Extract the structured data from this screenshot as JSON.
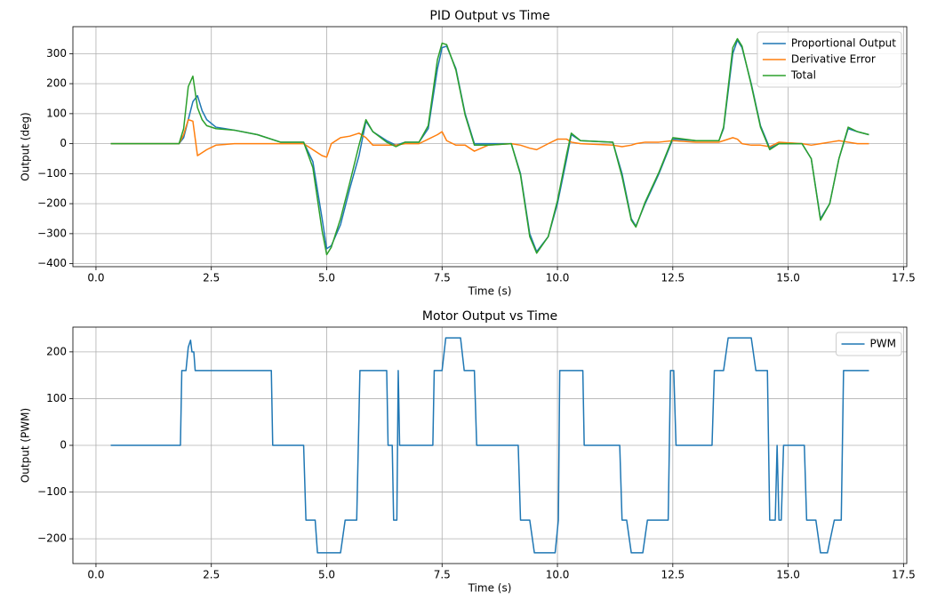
{
  "chart_data": [
    {
      "type": "line",
      "title": "PID Output vs Time",
      "xlabel": "Time (s)",
      "ylabel": "Output (deg)",
      "x": [
        0.32,
        1.8,
        1.9,
        2.0,
        2.1,
        2.2,
        2.3,
        2.4,
        2.6,
        3.0,
        3.5,
        4.0,
        4.5,
        4.7,
        4.9,
        5.0,
        5.1,
        5.3,
        5.5,
        5.7,
        5.85,
        6.0,
        6.3,
        6.5,
        6.7,
        7.0,
        7.2,
        7.4,
        7.5,
        7.6,
        7.8,
        8.0,
        8.2,
        8.5,
        9.0,
        9.2,
        9.4,
        9.55,
        9.8,
        10.0,
        10.2,
        10.3,
        10.5,
        11.2,
        11.4,
        11.6,
        11.7,
        11.9,
        12.2,
        12.5,
        13.0,
        13.5,
        13.6,
        13.8,
        13.9,
        14.0,
        14.2,
        14.4,
        14.6,
        14.8,
        15.3,
        15.5,
        15.7,
        15.9,
        16.1,
        16.3,
        16.5,
        16.75
      ],
      "series": [
        {
          "name": "Proportional Output",
          "color": "#1f77b4",
          "values": [
            0,
            0,
            20,
            80,
            140,
            160,
            110,
            80,
            55,
            45,
            30,
            5,
            5,
            -60,
            -250,
            -350,
            -340,
            -270,
            -150,
            -40,
            75,
            40,
            10,
            -5,
            5,
            5,
            50,
            250,
            320,
            325,
            250,
            100,
            0,
            0,
            0,
            -100,
            -300,
            -360,
            -310,
            -200,
            -50,
            30,
            10,
            5,
            -100,
            -250,
            -275,
            -200,
            -100,
            15,
            10,
            10,
            50,
            300,
            345,
            320,
            200,
            60,
            -15,
            0,
            0,
            -50,
            -250,
            -200,
            -50,
            50,
            40,
            30
          ]
        },
        {
          "name": "Derivative Error",
          "color": "#ff7f0e",
          "values": [
            0,
            0,
            30,
            80,
            75,
            -40,
            -30,
            -20,
            -5,
            0,
            0,
            0,
            0,
            -20,
            -40,
            -45,
            0,
            20,
            25,
            35,
            20,
            -5,
            -5,
            -5,
            0,
            0,
            15,
            30,
            40,
            10,
            -5,
            -5,
            -25,
            -5,
            0,
            -5,
            -15,
            -20,
            0,
            15,
            15,
            5,
            0,
            -5,
            -10,
            -5,
            0,
            5,
            5,
            10,
            5,
            5,
            10,
            20,
            15,
            0,
            -5,
            -5,
            -10,
            5,
            0,
            -5,
            0,
            5,
            10,
            5,
            0,
            0
          ]
        },
        {
          "name": "Total",
          "color": "#2ca02c",
          "values": [
            0,
            0,
            50,
            190,
            225,
            120,
            80,
            60,
            50,
            45,
            30,
            5,
            5,
            -80,
            -290,
            -370,
            -345,
            -250,
            -130,
            -5,
            80,
            40,
            5,
            -10,
            5,
            5,
            60,
            280,
            335,
            330,
            245,
            95,
            -5,
            -5,
            0,
            -105,
            -310,
            -365,
            -310,
            -190,
            -35,
            35,
            10,
            5,
            -110,
            -255,
            -278,
            -195,
            -95,
            20,
            10,
            10,
            55,
            320,
            350,
            325,
            195,
            55,
            -20,
            0,
            0,
            -50,
            -255,
            -200,
            -50,
            55,
            40,
            30
          ]
        }
      ],
      "xlim": [
        -0.5,
        17.57
      ],
      "ylim": [
        -410,
        390
      ],
      "xticks": [
        {
          "value": 0,
          "label": "0.0"
        },
        2.5,
        {
          "value": 5,
          "label": "5.0"
        },
        7.5,
        {
          "value": 10,
          "label": "10.0"
        },
        12.5,
        {
          "value": 15,
          "label": "15.0"
        },
        17.5
      ],
      "yticks": [
        {
          "value": -400,
          "label": "−400"
        },
        {
          "value": -300,
          "label": "−300"
        },
        {
          "value": -200,
          "label": "−200"
        },
        {
          "value": -100,
          "label": "−100"
        },
        0,
        100,
        200,
        300
      ],
      "grid": true,
      "legend": "upper right"
    },
    {
      "type": "line",
      "title": "Motor Output vs Time",
      "xlabel": "Time (s)",
      "ylabel": "Output (PWM)",
      "x": [
        0.32,
        1.83,
        1.86,
        1.95,
        2.0,
        2.05,
        2.08,
        2.12,
        2.15,
        3.8,
        3.83,
        4.5,
        4.55,
        4.75,
        4.8,
        5.3,
        5.4,
        5.65,
        5.72,
        6.3,
        6.33,
        6.42,
        6.45,
        6.52,
        6.55,
        6.58,
        6.62,
        7.3,
        7.33,
        7.5,
        7.58,
        7.9,
        7.98,
        8.2,
        8.25,
        9.15,
        9.2,
        9.4,
        9.5,
        9.95,
        10.02,
        10.05,
        10.55,
        10.58,
        11.35,
        11.4,
        11.5,
        11.6,
        11.85,
        11.95,
        12.4,
        12.45,
        12.52,
        12.57,
        13.35,
        13.4,
        13.6,
        13.7,
        14.2,
        14.3,
        14.55,
        14.6,
        14.72,
        14.76,
        14.8,
        14.85,
        14.9,
        15.35,
        15.4,
        15.6,
        15.7,
        15.85,
        16.0,
        16.15,
        16.2,
        16.75
      ],
      "series": [
        {
          "name": "PWM",
          "color": "#1f77b4",
          "values": [
            0,
            0,
            160,
            160,
            210,
            225,
            200,
            200,
            160,
            160,
            0,
            0,
            -160,
            -160,
            -230,
            -230,
            -160,
            -160,
            160,
            160,
            0,
            0,
            -160,
            -160,
            160,
            0,
            0,
            0,
            160,
            160,
            230,
            230,
            160,
            160,
            0,
            0,
            -160,
            -160,
            -230,
            -230,
            -160,
            160,
            160,
            0,
            0,
            -160,
            -160,
            -230,
            -230,
            -160,
            -160,
            160,
            160,
            0,
            0,
            160,
            160,
            230,
            230,
            160,
            160,
            -160,
            -160,
            0,
            -160,
            -160,
            0,
            0,
            -160,
            -160,
            -230,
            -230,
            -160,
            -160,
            160,
            160
          ]
        }
      ],
      "xlim": [
        -0.5,
        17.57
      ],
      "ylim": [
        -253,
        253
      ],
      "xticks": [
        {
          "value": 0,
          "label": "0.0"
        },
        2.5,
        {
          "value": 5,
          "label": "5.0"
        },
        7.5,
        {
          "value": 10,
          "label": "10.0"
        },
        12.5,
        {
          "value": 15,
          "label": "15.0"
        },
        17.5
      ],
      "yticks": [
        {
          "value": -200,
          "label": "−200"
        },
        {
          "value": -100,
          "label": "−100"
        },
        0,
        100,
        200
      ],
      "grid": true,
      "legend": "upper right"
    }
  ]
}
